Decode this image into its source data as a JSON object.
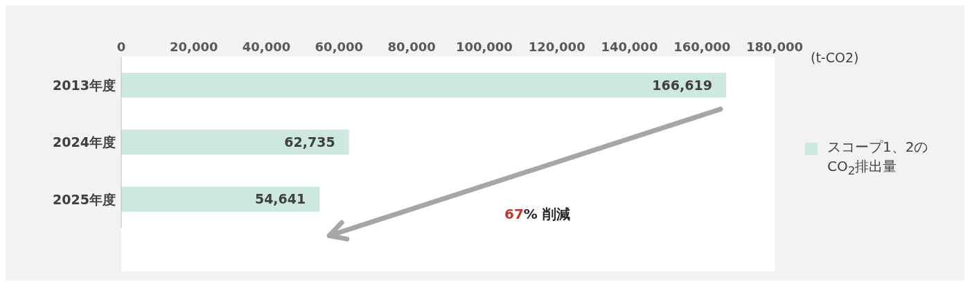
{
  "chart_data": {
    "type": "bar",
    "orientation": "horizontal",
    "categories": [
      "2013年度",
      "2024年度",
      "2025年度"
    ],
    "series": [
      {
        "name": "スコープ1、2のCO$_{2}$排出量",
        "color": "#cce8e0",
        "values": [
          166619,
          62735,
          54641
        ],
        "value_labels": [
          "166,619",
          "62,735",
          "54,641"
        ]
      }
    ],
    "xlim": [
      0,
      180000
    ],
    "xticks": [
      {
        "value": 0,
        "label": "0"
      },
      {
        "value": 20000,
        "label": "20,000"
      },
      {
        "value": 40000,
        "label": "40,000"
      },
      {
        "value": 60000,
        "label": "60,000"
      },
      {
        "value": 80000,
        "label": "80,000"
      },
      {
        "value": 100000,
        "label": "100,000"
      },
      {
        "value": 120000,
        "label": "120,000"
      },
      {
        "value": 140000,
        "label": "140,000"
      },
      {
        "value": 160000,
        "label": "160,000"
      },
      {
        "value": 180000,
        "label": "180,000"
      }
    ],
    "xlabel": "(t-CO2)",
    "legend": "right",
    "grid": false,
    "annotations": [
      "67% 削減"
    ]
  }
}
